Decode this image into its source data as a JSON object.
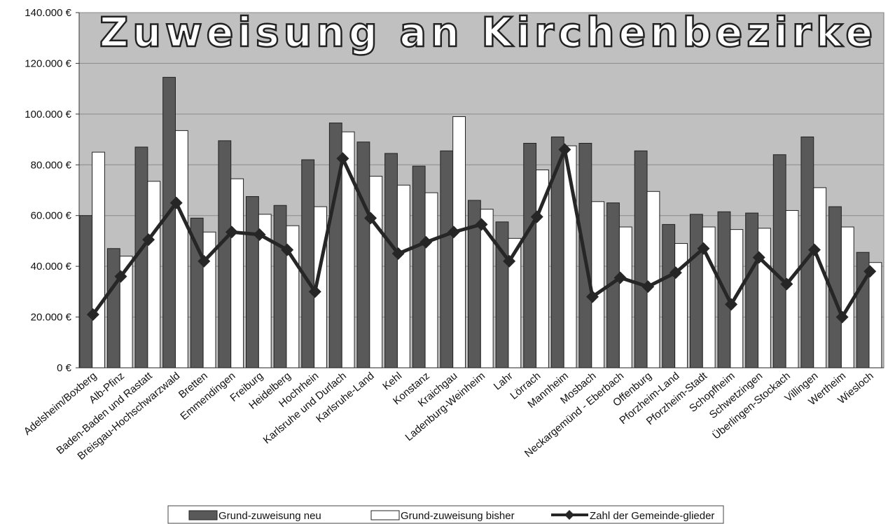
{
  "chart_data": {
    "type": "bar",
    "title": "Zuweisung an Kirchenbezirke",
    "categories": [
      "Adelsheim/Boxberg",
      "Alb-Pfinz",
      "Baden-Baden und Rastatt",
      "Breisgau-Hochschwarzwald",
      "Bretten",
      "Emmendingen",
      "Freiburg",
      "Heidelberg",
      "Hochrhein",
      "Karlsruhe und Durlach",
      "Karlsruhe-Land",
      "Kehl",
      "Konstanz",
      "Kraichgau",
      "Ladenburg-Weinheim",
      "Lahr",
      "Lörrach",
      "Mannheim",
      "Mosbach",
      "Neckargemünd - Eberbach",
      "Offenburg",
      "Pforzheim-Land",
      "Pforzheim-Stadt",
      "Schopfheim",
      "Schwetzingen",
      "Überlingen-Stockach",
      "Villingen",
      "Wertheim",
      "Wiesloch"
    ],
    "series": [
      {
        "name": "Grund-zuweisung neu",
        "type": "bar",
        "color": "#595959",
        "values": [
          60000,
          47000,
          87000,
          114500,
          59000,
          89500,
          67500,
          64000,
          82000,
          96500,
          89000,
          84500,
          79500,
          85500,
          66000,
          57500,
          88500,
          91000,
          88500,
          65000,
          85500,
          56500,
          60500,
          61500,
          61000,
          84000,
          91000,
          63500,
          45500
        ]
      },
      {
        "name": "Grund-zuweisung bisher",
        "type": "bar",
        "color": "#ffffff",
        "values": [
          85000,
          44000,
          73500,
          93500,
          53500,
          74500,
          60500,
          56000,
          63500,
          93000,
          75500,
          72000,
          69000,
          99000,
          62500,
          51000,
          78000,
          87500,
          65500,
          55500,
          69500,
          49000,
          55500,
          54500,
          55000,
          62000,
          71000,
          55500,
          41500
        ]
      },
      {
        "name": "Zahl der Gemeinde-glieder",
        "type": "line",
        "color": "#262626",
        "values": [
          21000,
          36000,
          50500,
          65000,
          42000,
          53500,
          52500,
          46500,
          30000,
          82500,
          59000,
          45000,
          49500,
          53500,
          56500,
          42000,
          59500,
          86000,
          28000,
          35500,
          32000,
          37500,
          47000,
          25000,
          43500,
          33000,
          46500,
          20000,
          38000
        ]
      }
    ],
    "ylim": [
      0,
      140000
    ],
    "yticks": [
      {
        "value": 0,
        "label": "0 €"
      },
      {
        "value": 20000,
        "label": "20.000 €"
      },
      {
        "value": 40000,
        "label": "40.000 €"
      },
      {
        "value": 60000,
        "label": "60.000 €"
      },
      {
        "value": 80000,
        "label": "80.000 €"
      },
      {
        "value": 100000,
        "label": "100.000 €"
      },
      {
        "value": 120000,
        "label": "120.000 €"
      },
      {
        "value": 140000,
        "label": "140.000 €"
      }
    ],
    "grid": true,
    "legend": "bottom",
    "plot_background": "#c0c0c0"
  }
}
